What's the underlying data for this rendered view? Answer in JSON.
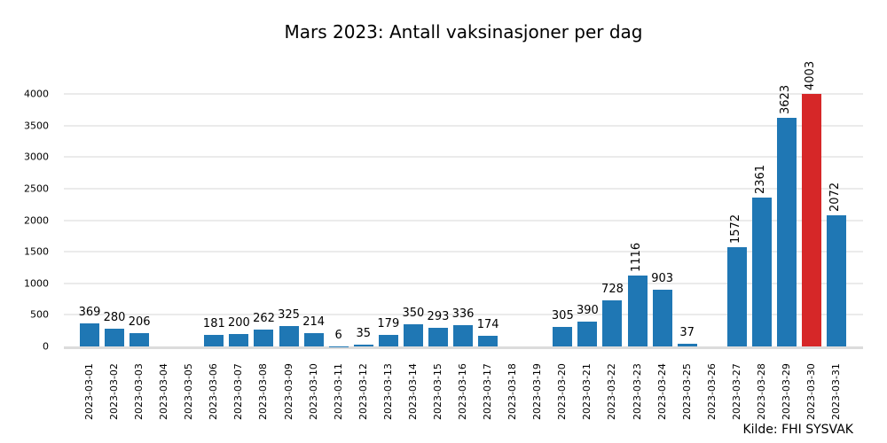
{
  "chart_data": {
    "type": "bar",
    "title": "Mars 2023: Antall vaksinasjoner per dag",
    "xlabel": "",
    "ylabel": "",
    "ylim": [
      0,
      4000
    ],
    "yticks": [
      0,
      500,
      1000,
      1500,
      2000,
      2500,
      3000,
      3500,
      4000
    ],
    "grid": true,
    "legend": null,
    "source": "Kilde: FHI SYSVAK",
    "colors": {
      "default": "#1f77b4",
      "highlight": "#d62728"
    },
    "highlight_category": "2023-03-30",
    "categories": [
      "2023-03-01",
      "2023-03-02",
      "2023-03-03",
      "2023-03-04",
      "2023-03-05",
      "2023-03-06",
      "2023-03-07",
      "2023-03-08",
      "2023-03-09",
      "2023-03-10",
      "2023-03-11",
      "2023-03-12",
      "2023-03-13",
      "2023-03-14",
      "2023-03-15",
      "2023-03-16",
      "2023-03-17",
      "2023-03-18",
      "2023-03-19",
      "2023-03-20",
      "2023-03-21",
      "2023-03-22",
      "2023-03-23",
      "2023-03-24",
      "2023-03-25",
      "2023-03-26",
      "2023-03-27",
      "2023-03-28",
      "2023-03-29",
      "2023-03-30",
      "2023-03-31"
    ],
    "values": [
      369,
      280,
      206,
      0,
      0,
      181,
      200,
      262,
      325,
      214,
      6,
      35,
      179,
      350,
      293,
      336,
      174,
      0,
      0,
      305,
      390,
      728,
      1116,
      903,
      37,
      0,
      1572,
      2361,
      3623,
      4003,
      2072
    ],
    "labels": [
      "369",
      "280",
      "206",
      "",
      "",
      "181",
      "200",
      "262",
      "325",
      "214",
      "6",
      "35",
      "179",
      "350",
      "293",
      "336",
      "174",
      "",
      "",
      "305",
      "390",
      "728",
      "1116",
      "903",
      "37",
      "",
      "1572",
      "2361",
      "3623",
      "4003",
      "2072"
    ],
    "rotated_label_threshold": 1000
  }
}
